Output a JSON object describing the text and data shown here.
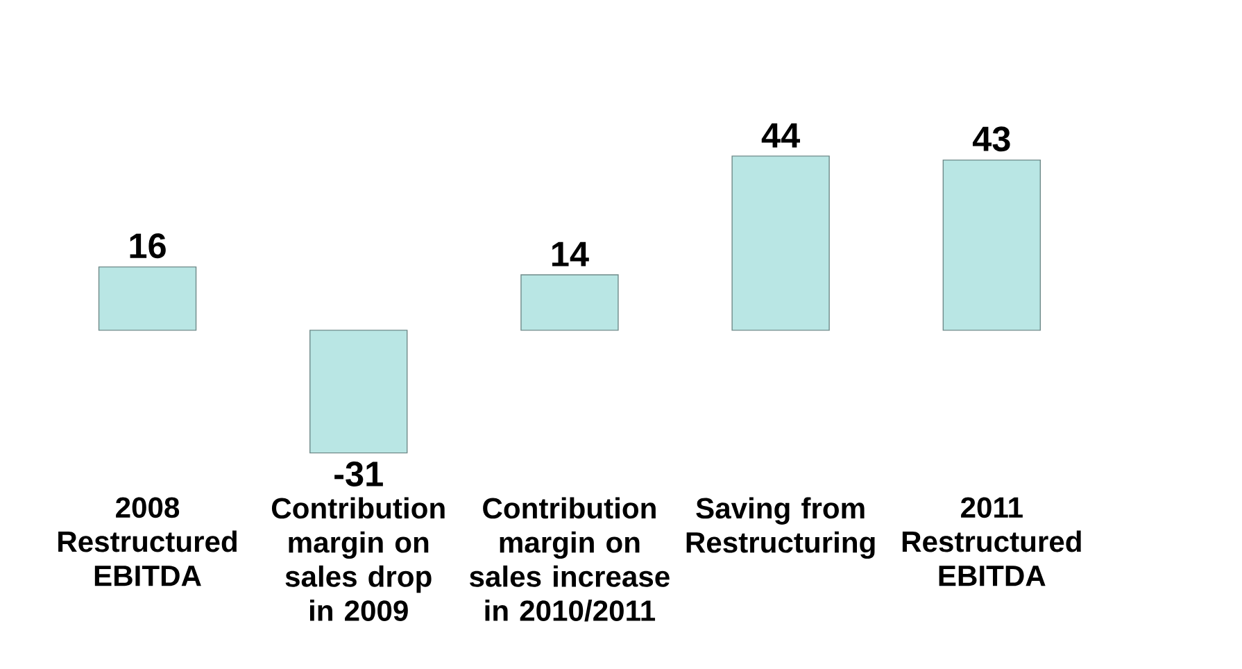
{
  "chart_data": {
    "type": "bar",
    "categories": [
      "2008 Restructured EBITDA",
      "Contribution margin on sales drop in 2009",
      "Contribution margin on sales increase in 2010/2011",
      "Saving from Restructuring",
      "2011 Restructured EBITDA"
    ],
    "values": [
      16,
      -31,
      14,
      44,
      43
    ],
    "color": "#b9e6e4",
    "data_labels": true
  }
}
